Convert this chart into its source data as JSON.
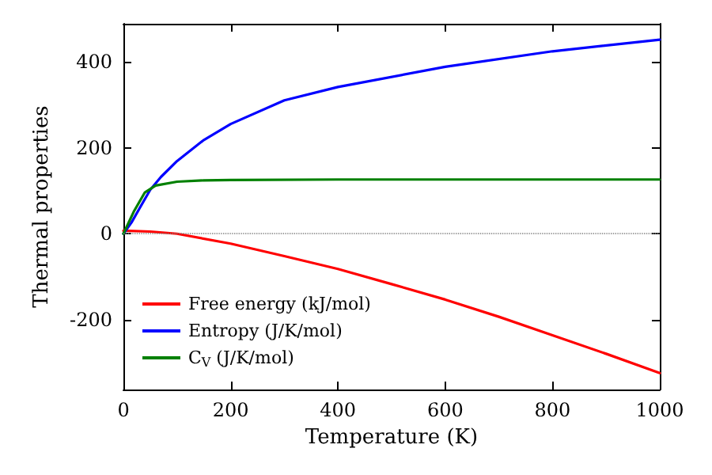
{
  "chart_data": {
    "type": "line",
    "xlabel": "Temperature (K)",
    "ylabel": "Thermal properties",
    "xlim": [
      0,
      1000
    ],
    "ylim": [
      -362,
      488
    ],
    "xticks": [
      0,
      200,
      400,
      600,
      800,
      1000
    ],
    "yticks": [
      -200,
      0,
      200,
      400
    ],
    "grid": false,
    "legend": "bottom left",
    "marker": "none",
    "line_style": "solid",
    "ref_lines": [
      {
        "axis": "y",
        "value": 0,
        "label": null,
        "color": "#808080",
        "line_style": "dotted"
      }
    ],
    "series": [
      {
        "name": "Free energy (kJ/mol)",
        "color": "#ff0000",
        "x": [
          0,
          50,
          100,
          200,
          300,
          400,
          500,
          600,
          700,
          800,
          900,
          1000
        ],
        "values": [
          7,
          5,
          0,
          -23,
          -52,
          -82,
          -117,
          -153,
          -193,
          -236,
          -279,
          -324
        ]
      },
      {
        "name": "Entropy (J/K/mol)",
        "color": "#0000ff",
        "x": [
          0,
          15,
          30,
          50,
          70,
          100,
          150,
          200,
          300,
          400,
          600,
          800,
          1000
        ],
        "values": [
          0,
          26,
          59,
          102,
          132,
          169,
          218,
          255,
          310,
          341,
          388,
          424,
          451
        ]
      },
      {
        "name": "C$_{V}$ (J/K/mol)",
        "color": "#008000",
        "x": [
          0,
          20,
          40,
          60,
          100,
          150,
          200,
          400,
          1000
        ],
        "values": [
          0,
          53,
          96,
          112,
          121,
          124,
          125,
          126,
          126
        ]
      }
    ]
  }
}
